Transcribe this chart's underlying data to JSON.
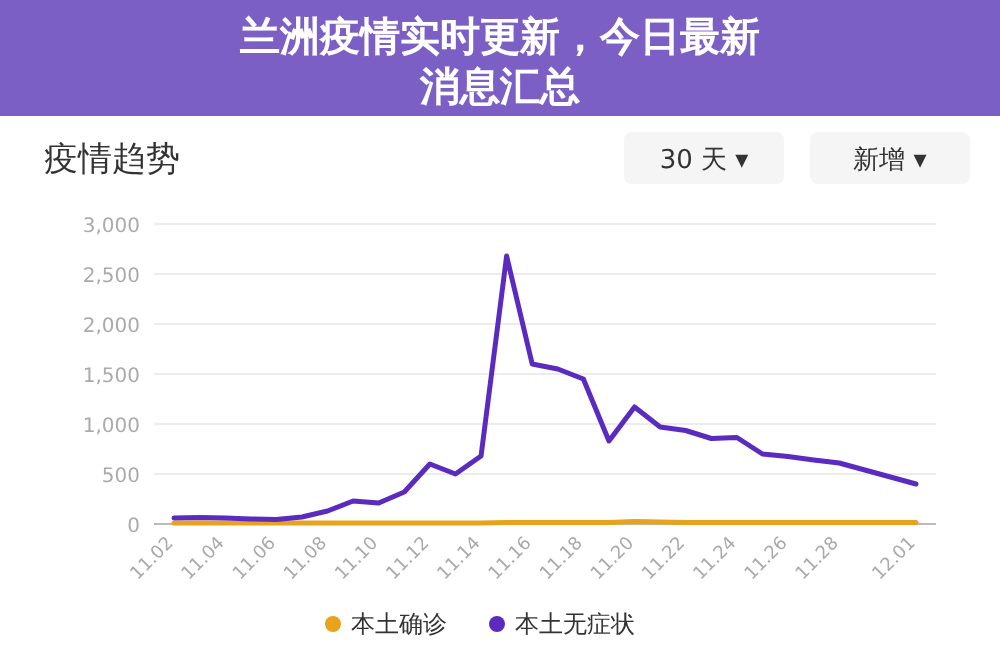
{
  "chart_data": {
    "type": "line",
    "title": "兰洲疫情实时更新，今日最新消息汇总",
    "subtitle": "疫情趋势",
    "annotations": [
      "30 天 ▾",
      "新增 ▾"
    ],
    "categories": [
      "11.02",
      null,
      "11.04",
      null,
      "11.06",
      null,
      "11.08",
      null,
      "11.10",
      null,
      "11.12",
      null,
      "11.14",
      null,
      "11.16",
      null,
      "11.18",
      null,
      "11.20",
      null,
      "11.22",
      null,
      "11.24",
      null,
      "11.26",
      null,
      "11.28",
      null,
      null,
      "12.01"
    ],
    "series": [
      {
        "name": "本土确诊",
        "color": "#e8a21c",
        "values": [
          10,
          10,
          10,
          10,
          10,
          10,
          10,
          10,
          10,
          10,
          10,
          10,
          10,
          15,
          15,
          15,
          15,
          15,
          25,
          20,
          15,
          15,
          15,
          15,
          15,
          15,
          15,
          15,
          15,
          15
        ]
      },
      {
        "name": "本土无症状",
        "color": "#5b2bc0",
        "values": [
          60,
          65,
          60,
          50,
          45,
          70,
          130,
          230,
          210,
          320,
          600,
          500,
          680,
          2680,
          1600,
          1550,
          1450,
          830,
          1170,
          970,
          935,
          855,
          865,
          700,
          675,
          640,
          610,
          540,
          470,
          400
        ]
      }
    ],
    "ylim": [
      0,
      3000
    ],
    "yticks": [
      0,
      500,
      {
        "value": 1000,
        "label": "1,000"
      },
      {
        "value": 1500,
        "label": "1,500"
      },
      {
        "value": 2000,
        "label": "2,000"
      },
      {
        "value": 2500,
        "label": "2,500"
      },
      {
        "value": 3000,
        "label": "3,000"
      }
    ],
    "grid": "y",
    "legend": "bottom",
    "marker": "none",
    "line_style": "solid"
  }
}
